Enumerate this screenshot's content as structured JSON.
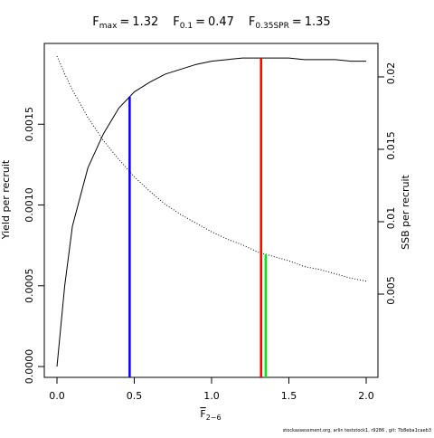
{
  "chart_data": {
    "type": "line",
    "reference_points": [
      {
        "symbol": "F",
        "subscript": "max",
        "relation": "=",
        "value": 1.32,
        "color": "#ff0000",
        "curve": 0
      },
      {
        "symbol": "F",
        "subscript": "0.1",
        "relation": "=",
        "value": 0.47,
        "color": "#0000ff",
        "curve": 0
      },
      {
        "symbol": "F",
        "subscript": "0.35SPR",
        "relation": "=",
        "value": 1.35,
        "color": "#00ee00",
        "curve": 1
      }
    ],
    "x_label": {
      "symbol": "F",
      "subscript": "2−6"
    },
    "y_label": "Yield per recruit",
    "y2_label": "SSB per recruit",
    "footer": "stockassessment.org, arlin  teststock1, r9286 , git: 7b8eba1caeb3",
    "x": [
      0,
      0.05,
      0.1,
      0.2,
      0.3,
      0.4,
      0.5,
      0.6,
      0.7,
      0.8,
      0.9,
      1.0,
      1.1,
      1.2,
      1.3,
      1.4,
      1.5,
      1.6,
      1.7,
      1.8,
      1.9,
      2.0
    ],
    "series": [
      {
        "color": "#000000",
        "style": "solid",
        "axis": "y",
        "values": [
          0,
          0.0005,
          0.00087,
          0.00123,
          0.00144,
          0.0016,
          0.0017,
          0.00176,
          0.00181,
          0.00184,
          0.00187,
          0.00189,
          0.0019,
          0.00191,
          0.00191,
          0.00191,
          0.00191,
          0.0019,
          0.0019,
          0.0019,
          0.00189,
          0.00189
        ]
      },
      {
        "color": "#000000",
        "style": "dotted",
        "axis": "y2",
        "values": [
          0.02144,
          0.0202,
          0.0191,
          0.0172,
          0.0156,
          0.0143,
          0.0131,
          0.0121,
          0.0112,
          0.0105,
          0.0099,
          0.0093,
          0.0088,
          0.0084,
          0.0079,
          0.0076,
          0.0073,
          0.0069,
          0.0067,
          0.0064,
          0.0061,
          0.0059
        ]
      }
    ],
    "xlim": [
      -0.082,
      2.076
    ],
    "xticks": [
      {
        "value": 0,
        "label": "0.0"
      },
      0.5,
      {
        "value": 1,
        "label": "1.0"
      },
      1.5,
      {
        "value": 2,
        "label": "2.0"
      }
    ],
    "ylim": [
      -6.7e-05,
      0.002
    ],
    "yticks": [
      {
        "value": 0,
        "label": "0.0000"
      },
      0.0005,
      {
        "value": 0.001,
        "label": "0.0010"
      },
      0.0015
    ],
    "y2lim": [
      -0.00075,
      0.02231
    ],
    "y2ticks": [
      0.005,
      0.01,
      0.015,
      0.02
    ]
  }
}
